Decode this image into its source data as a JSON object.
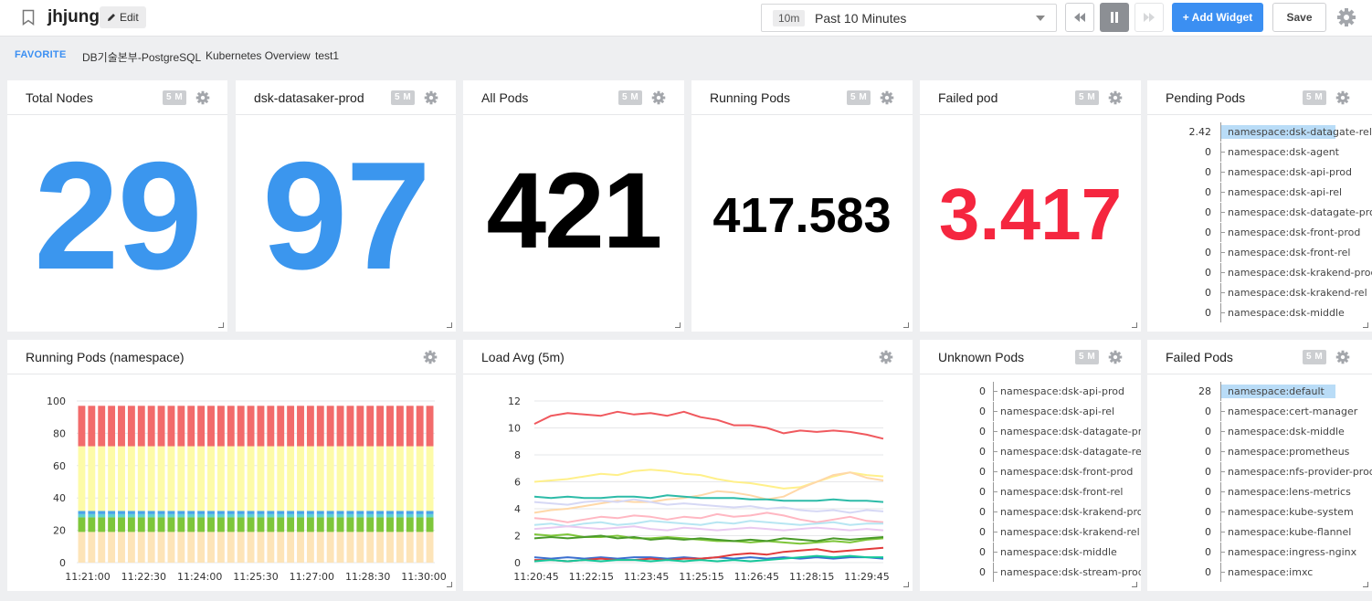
{
  "header": {
    "title": "jhjung",
    "edit_label": "Edit",
    "time_badge": "10m",
    "time_label": "Past 10 Minutes",
    "add_widget_label": "+ Add Widget",
    "save_label": "Save"
  },
  "favorites": {
    "title": "FAVORITE",
    "items": [
      "DB기술본부-PostgreSQL",
      "Kubernetes Overview",
      "test1"
    ]
  },
  "colors": {
    "accent": "#3b8ff2",
    "danger": "#f5263f",
    "text": "#000000"
  },
  "widgets": {
    "total_nodes": {
      "title": "Total Nodes",
      "badge": "5 M",
      "value": "29"
    },
    "datasaker_prod": {
      "title": "dsk-datasaker-prod",
      "badge": "5 M",
      "value": "97"
    },
    "all_pods": {
      "title": "All Pods",
      "badge": "5 M",
      "value": "421"
    },
    "running_pods": {
      "title": "Running Pods",
      "badge": "5 M",
      "value": "417.583"
    },
    "failed_pod": {
      "title": "Failed pod",
      "badge": "5 M",
      "value": "3.417"
    },
    "pending_pods": {
      "title": "Pending Pods",
      "badge": "5 M",
      "rows": [
        {
          "value": "2.42",
          "label": "namespace:dsk-datagate-rel",
          "fraction": 1.0
        },
        {
          "value": "0",
          "label": "namespace:dsk-agent",
          "fraction": 0
        },
        {
          "value": "0",
          "label": "namespace:dsk-api-prod",
          "fraction": 0
        },
        {
          "value": "0",
          "label": "namespace:dsk-api-rel",
          "fraction": 0
        },
        {
          "value": "0",
          "label": "namespace:dsk-datagate-prod",
          "fraction": 0
        },
        {
          "value": "0",
          "label": "namespace:dsk-front-prod",
          "fraction": 0
        },
        {
          "value": "0",
          "label": "namespace:dsk-front-rel",
          "fraction": 0
        },
        {
          "value": "0",
          "label": "namespace:dsk-krakend-prod",
          "fraction": 0
        },
        {
          "value": "0",
          "label": "namespace:dsk-krakend-rel",
          "fraction": 0
        },
        {
          "value": "0",
          "label": "namespace:dsk-middle",
          "fraction": 0
        }
      ]
    },
    "unknown_pods": {
      "title": "Unknown Pods",
      "badge": "5 M",
      "rows": [
        {
          "value": "0",
          "label": "namespace:dsk-api-prod",
          "fraction": 0
        },
        {
          "value": "0",
          "label": "namespace:dsk-api-rel",
          "fraction": 0
        },
        {
          "value": "0",
          "label": "namespace:dsk-datagate-prod",
          "fraction": 0
        },
        {
          "value": "0",
          "label": "namespace:dsk-datagate-rel",
          "fraction": 0
        },
        {
          "value": "0",
          "label": "namespace:dsk-front-prod",
          "fraction": 0
        },
        {
          "value": "0",
          "label": "namespace:dsk-front-rel",
          "fraction": 0
        },
        {
          "value": "0",
          "label": "namespace:dsk-krakend-prod",
          "fraction": 0
        },
        {
          "value": "0",
          "label": "namespace:dsk-krakend-rel",
          "fraction": 0
        },
        {
          "value": "0",
          "label": "namespace:dsk-middle",
          "fraction": 0
        },
        {
          "value": "0",
          "label": "namespace:dsk-stream-prod",
          "fraction": 0
        }
      ]
    },
    "failed_pods": {
      "title": "Failed Pods",
      "badge": "5 M",
      "rows": [
        {
          "value": "28",
          "label": "namespace:default",
          "fraction": 1.0
        },
        {
          "value": "0",
          "label": "namespace:cert-manager",
          "fraction": 0
        },
        {
          "value": "0",
          "label": "namespace:dsk-middle",
          "fraction": 0
        },
        {
          "value": "0",
          "label": "namespace:prometheus",
          "fraction": 0
        },
        {
          "value": "0",
          "label": "namespace:nfs-provider-prod",
          "fraction": 0
        },
        {
          "value": "0",
          "label": "namespace:lens-metrics",
          "fraction": 0
        },
        {
          "value": "0",
          "label": "namespace:kube-system",
          "fraction": 0
        },
        {
          "value": "0",
          "label": "namespace:kube-flannel",
          "fraction": 0
        },
        {
          "value": "0",
          "label": "namespace:ingress-nginx",
          "fraction": 0
        },
        {
          "value": "0",
          "label": "namespace:imxc",
          "fraction": 0
        }
      ]
    },
    "running_ns": {
      "title": "Running Pods (namespace)"
    },
    "load_avg": {
      "title": "Load Avg (5m)"
    }
  },
  "chart_data": [
    {
      "type": "bar",
      "stacked": true,
      "bar_count": 36,
      "xtick_labels": [
        "11:21:00",
        "11:22:30",
        "11:24:00",
        "11:25:30",
        "11:27:00",
        "11:28:30",
        "11:30:00"
      ],
      "ylim": [
        0,
        100
      ],
      "yticks": [
        0,
        20,
        40,
        60,
        80,
        100
      ],
      "grid": true,
      "series": [
        {
          "values_each_bar": 19,
          "color": "#fde4b8"
        },
        {
          "values_each_bar": 9,
          "color": "#7ec63a"
        },
        {
          "values_each_bar": 2,
          "color": "#5fd1cf"
        },
        {
          "values_each_bar": 2,
          "color": "#4aa3e8"
        },
        {
          "values_each_bar": 40,
          "color": "#fdfba8"
        },
        {
          "values_each_bar": 25,
          "color": "#f26b6b"
        }
      ]
    },
    {
      "type": "line",
      "xtick_labels": [
        "11:20:45",
        "11:22:15",
        "11:23:45",
        "11:25:15",
        "11:26:45",
        "11:28:15",
        "11:29:45"
      ],
      "ylim": [
        0,
        12
      ],
      "yticks": [
        0,
        2,
        4,
        6,
        8,
        10,
        12
      ],
      "grid": true,
      "series": [
        {
          "color": "#f0595e",
          "values": [
            10.3,
            10.9,
            11.1,
            11.0,
            10.9,
            11.2,
            11.0,
            11.1,
            10.9,
            11.2,
            10.8,
            10.6,
            10.2,
            10.2,
            10.0,
            9.6,
            9.8,
            9.7,
            9.8,
            9.7,
            9.5,
            9.2
          ]
        },
        {
          "color": "#fff08a",
          "values": [
            6.0,
            6.1,
            6.2,
            6.4,
            6.6,
            6.5,
            6.8,
            6.9,
            6.8,
            6.6,
            6.5,
            6.2,
            6.0,
            5.9,
            5.7,
            5.5,
            5.6,
            6.0,
            6.4,
            6.7,
            6.5,
            6.4
          ]
        },
        {
          "color": "#ffd8a8",
          "values": [
            3.7,
            3.9,
            4.0,
            4.2,
            4.4,
            4.6,
            4.5,
            4.5,
            4.7,
            4.8,
            5.0,
            5.3,
            5.2,
            5.0,
            4.7,
            4.9,
            5.5,
            6.0,
            6.5,
            6.7,
            6.3,
            6.1
          ]
        },
        {
          "color": "#2dbba8",
          "values": [
            4.9,
            4.8,
            4.9,
            4.8,
            4.8,
            4.9,
            4.9,
            4.8,
            5.0,
            4.9,
            4.8,
            4.8,
            4.8,
            4.7,
            4.7,
            4.6,
            4.6,
            4.6,
            4.7,
            4.6,
            4.6,
            4.5
          ]
        },
        {
          "color": "#d6d8f5",
          "values": [
            4.5,
            4.4,
            4.3,
            4.5,
            4.6,
            4.5,
            4.7,
            4.5,
            4.3,
            4.4,
            4.3,
            4.2,
            4.1,
            4.2,
            4.0,
            4.1,
            3.9,
            3.8,
            3.9,
            3.7,
            3.9,
            3.8
          ]
        },
        {
          "color": "#ffb7c2",
          "values": [
            3.3,
            3.2,
            3.0,
            3.2,
            3.4,
            3.3,
            3.5,
            3.4,
            3.2,
            3.4,
            3.3,
            3.6,
            3.4,
            3.5,
            3.7,
            3.5,
            3.2,
            3.0,
            3.2,
            3.4,
            3.1,
            3.0
          ]
        },
        {
          "color": "#b7e6f2",
          "values": [
            2.8,
            2.9,
            2.7,
            2.9,
            3.0,
            2.8,
            2.9,
            3.1,
            3.0,
            2.9,
            2.8,
            3.0,
            2.9,
            3.1,
            3.0,
            2.9,
            2.8,
            2.9,
            3.0,
            2.8,
            2.9,
            2.9
          ]
        },
        {
          "color": "#e9c9f0",
          "values": [
            2.5,
            2.6,
            2.7,
            2.6,
            2.5,
            2.6,
            2.7,
            2.5,
            2.4,
            2.6,
            2.5,
            2.4,
            2.5,
            2.6,
            2.5,
            2.4,
            2.5,
            2.6,
            2.5,
            2.4,
            2.5,
            2.4
          ]
        },
        {
          "color": "#7ec63a",
          "values": [
            2.1,
            2.0,
            2.1,
            1.9,
            1.9,
            2.0,
            1.8,
            1.8,
            1.9,
            1.8,
            1.7,
            1.6,
            1.6,
            1.5,
            1.6,
            1.5,
            1.4,
            1.5,
            1.6,
            1.5,
            1.7,
            1.8
          ]
        },
        {
          "color": "#4a9a2a",
          "values": [
            1.8,
            1.9,
            1.8,
            1.9,
            2.0,
            1.8,
            1.9,
            1.7,
            1.8,
            1.7,
            1.8,
            1.7,
            1.6,
            1.7,
            1.6,
            1.8,
            1.7,
            1.6,
            1.8,
            1.7,
            1.8,
            1.9
          ]
        },
        {
          "color": "#3b6fd0",
          "values": [
            0.4,
            0.3,
            0.4,
            0.3,
            0.4,
            0.3,
            0.4,
            0.4,
            0.3,
            0.4,
            0.3,
            0.4,
            0.3,
            0.4,
            0.3,
            0.4,
            0.3,
            0.4,
            0.3,
            0.4,
            0.4,
            0.3
          ]
        },
        {
          "color": "#e23b3b",
          "values": [
            0.2,
            0.2,
            0.1,
            0.2,
            0.3,
            0.2,
            0.2,
            0.3,
            0.2,
            0.3,
            0.3,
            0.4,
            0.6,
            0.7,
            0.6,
            0.8,
            0.9,
            1.0,
            0.8,
            0.9,
            1.0,
            1.1
          ]
        },
        {
          "color": "#16c79a",
          "values": [
            0.1,
            0.2,
            0.1,
            0.2,
            0.1,
            0.2,
            0.2,
            0.1,
            0.2,
            0.1,
            0.2,
            0.1,
            0.2,
            0.1,
            0.2,
            0.3,
            0.4,
            0.5,
            0.4,
            0.5,
            0.4,
            0.4
          ]
        }
      ]
    }
  ]
}
